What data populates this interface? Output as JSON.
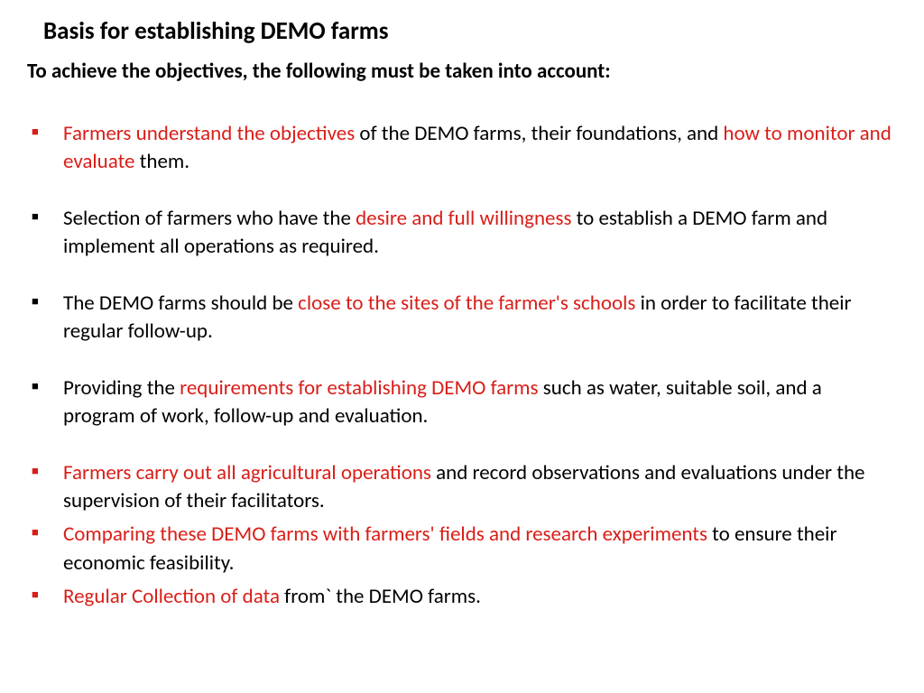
{
  "title": "Basis for establishing DEMO farms",
  "subtitle": "To achieve the objectives, the following must be taken into account:",
  "colors": {
    "highlight": "#d91e18",
    "text": "#000000",
    "background": "#ffffff"
  },
  "typography": {
    "title_fontsize": 27,
    "subtitle_fontsize": 23,
    "body_fontsize": 23,
    "font_family": "Calibri"
  },
  "bullets": [
    {
      "bullet_color": "red",
      "spacing": "normal",
      "segments": [
        {
          "text": "Farmers understand the objectives",
          "red": true
        },
        {
          "text": " of the DEMO farms, their foundations, and ",
          "red": false
        },
        {
          "text": "how to monitor and evaluate",
          "red": true
        },
        {
          "text": " them.",
          "red": false
        }
      ]
    },
    {
      "bullet_color": "black",
      "spacing": "normal",
      "segments": [
        {
          "text": "Selection of farmers who have the ",
          "red": false
        },
        {
          "text": "desire and full willingness",
          "red": true
        },
        {
          "text": " to establish a DEMO farm and implement all operations as required.",
          "red": false
        }
      ]
    },
    {
      "bullet_color": "black",
      "spacing": "normal",
      "segments": [
        {
          "text": "The DEMO farms should be ",
          "red": false
        },
        {
          "text": "close to the sites of the farmer's schools",
          "red": true
        },
        {
          "text": " in order to facilitate their regular follow-up.",
          "red": false
        }
      ]
    },
    {
      "bullet_color": "black",
      "spacing": "normal",
      "segments": [
        {
          "text": "Providing the ",
          "red": false
        },
        {
          "text": "requirements for establishing DEMO farms",
          "red": true
        },
        {
          "text": " such as water, suitable soil, and a program of work, follow-up and evaluation.",
          "red": false
        }
      ]
    },
    {
      "bullet_color": "red",
      "spacing": "tight",
      "segments": [
        {
          "text": "Farmers carry out all agricultural operations",
          "red": true
        },
        {
          "text": " and record observations and evaluations under the supervision of their facilitators.",
          "red": false
        }
      ]
    },
    {
      "bullet_color": "red",
      "spacing": "tight",
      "segments": [
        {
          "text": "Comparing these DEMO farms with farmers' fields and research experiments",
          "red": true
        },
        {
          "text": " to ensure their economic feasibility.",
          "red": false
        }
      ]
    },
    {
      "bullet_color": "red",
      "spacing": "tight",
      "segments": [
        {
          "text": "Regular Collection of  data",
          "red": true
        },
        {
          "text": " from` the DEMO farms.",
          "red": false
        }
      ]
    }
  ]
}
